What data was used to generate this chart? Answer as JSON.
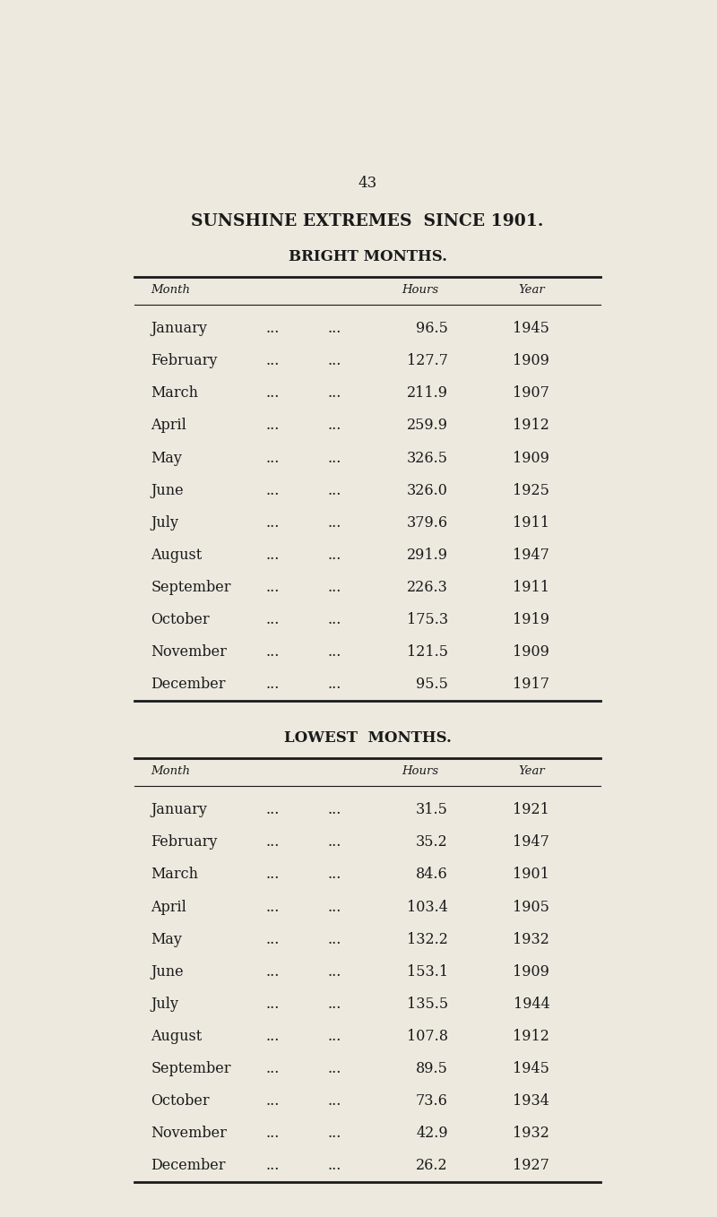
{
  "page_number": "43",
  "main_title": "SUNSHINE EXTREMES  SINCE 1901.",
  "bg_color": "#ede9df",
  "text_color": "#1a1a1a",
  "bright_title": "BRIGHT MONTHS.",
  "lowest_title": "LOWEST  MONTHS.",
  "header_month": "Month",
  "header_hours": "Hours",
  "header_year": "Year",
  "bright_data": [
    [
      "January",
      "96.5",
      "1945"
    ],
    [
      "February",
      "127.7",
      "1909"
    ],
    [
      "March",
      "211.9",
      "1907"
    ],
    [
      "April",
      "259.9",
      "1912"
    ],
    [
      "May",
      "326.5",
      "1909"
    ],
    [
      "June",
      "326.0",
      "1925"
    ],
    [
      "July",
      "379.6",
      "1911"
    ],
    [
      "August",
      "291.9",
      "1947"
    ],
    [
      "September",
      "226.3",
      "1911"
    ],
    [
      "October",
      "175.3",
      "1919"
    ],
    [
      "November",
      "121.5",
      "1909"
    ],
    [
      "December",
      "95.5",
      "1917"
    ]
  ],
  "lowest_data": [
    [
      "January",
      "31.5",
      "1921"
    ],
    [
      "February",
      "35.2",
      "1947"
    ],
    [
      "March",
      "84.6",
      "1901"
    ],
    [
      "April",
      "103.4",
      "1905"
    ],
    [
      "May",
      "132.2",
      "1932"
    ],
    [
      "June",
      "153.1",
      "1909"
    ],
    [
      "July",
      "135.5",
      "1944"
    ],
    [
      "August",
      "107.8",
      "1912"
    ],
    [
      "September",
      "89.5",
      "1945"
    ],
    [
      "October",
      "73.6",
      "1934"
    ],
    [
      "November",
      "42.9",
      "1932"
    ],
    [
      "December",
      "26.2",
      "1927"
    ]
  ]
}
